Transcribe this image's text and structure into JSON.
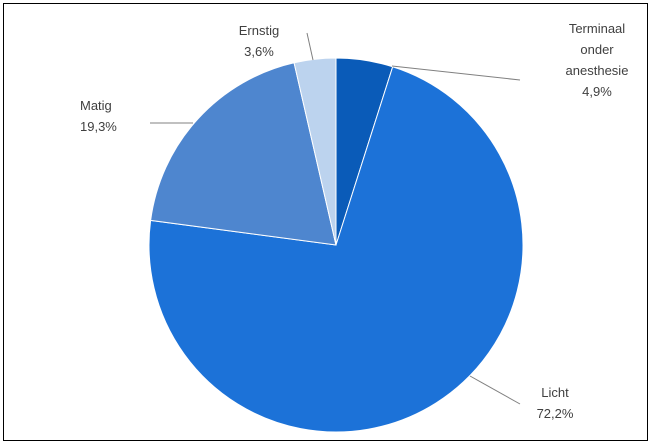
{
  "chart_data": {
    "type": "pie",
    "categories": [
      "Terminaal onder anesthesie",
      "Licht",
      "Matig",
      "Ernstig"
    ],
    "values": [
      4.9,
      72.2,
      19.3,
      3.6
    ],
    "colors": [
      "#0a5bb8",
      "#1c72d8",
      "#4e86cf",
      "#bcd3ee"
    ],
    "labels": [
      {
        "lines": [
          "Terminaal",
          "onder",
          "anesthesie"
        ],
        "value_text": "4,9%"
      },
      {
        "lines": [
          "Licht"
        ],
        "value_text": "72,2%"
      },
      {
        "lines": [
          "Matig"
        ],
        "value_text": "19,3%"
      },
      {
        "lines": [
          "Ernstig"
        ],
        "value_text": "3,6%"
      }
    ],
    "start_angle": "top",
    "direction": "clockwise",
    "legend": "none"
  }
}
